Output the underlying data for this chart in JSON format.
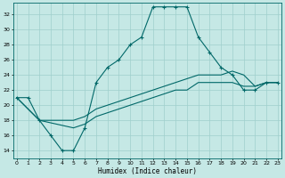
{
  "title": "",
  "xlabel": "Humidex (Indice chaleur)",
  "ylabel": "",
  "bg_color": "#c5e8e5",
  "grid_color": "#9fcfcc",
  "line_color": "#006868",
  "x_ticks": [
    0,
    1,
    2,
    3,
    4,
    5,
    6,
    7,
    8,
    9,
    10,
    11,
    12,
    13,
    14,
    15,
    16,
    17,
    18,
    19,
    20,
    21,
    22,
    23
  ],
  "y_ticks": [
    14,
    16,
    18,
    20,
    22,
    24,
    26,
    28,
    30,
    32
  ],
  "ylim": [
    13.0,
    33.5
  ],
  "xlim": [
    -0.3,
    23.3
  ],
  "line1_x": [
    0,
    1,
    2,
    3,
    4,
    5,
    6,
    7,
    8,
    9,
    10,
    11,
    12,
    13,
    14,
    15,
    16,
    17,
    18,
    19,
    20,
    21,
    22,
    23
  ],
  "line1_y": [
    21,
    21,
    18,
    16,
    14,
    14,
    17,
    23,
    25,
    26,
    28,
    29,
    33,
    33,
    33,
    33,
    29,
    27,
    25,
    24,
    22,
    22,
    23,
    23
  ],
  "line2_x": [
    0,
    2,
    5,
    6,
    7,
    8,
    9,
    10,
    11,
    12,
    13,
    14,
    15,
    16,
    17,
    18,
    19,
    20,
    21,
    22,
    23
  ],
  "line2_y": [
    21,
    18,
    18,
    18.5,
    19.5,
    20,
    20.5,
    21,
    21.5,
    22,
    22.5,
    23,
    23.5,
    24,
    24,
    24,
    24.5,
    24,
    22.5,
    23,
    23
  ],
  "line3_x": [
    0,
    2,
    5,
    6,
    7,
    8,
    9,
    10,
    11,
    12,
    13,
    14,
    15,
    16,
    17,
    18,
    19,
    20,
    21,
    22,
    23
  ],
  "line3_y": [
    21,
    18,
    17,
    17.5,
    18.5,
    19,
    19.5,
    20,
    20.5,
    21,
    21.5,
    22,
    22,
    23,
    23,
    23,
    23,
    22.5,
    22.5,
    23,
    23
  ]
}
